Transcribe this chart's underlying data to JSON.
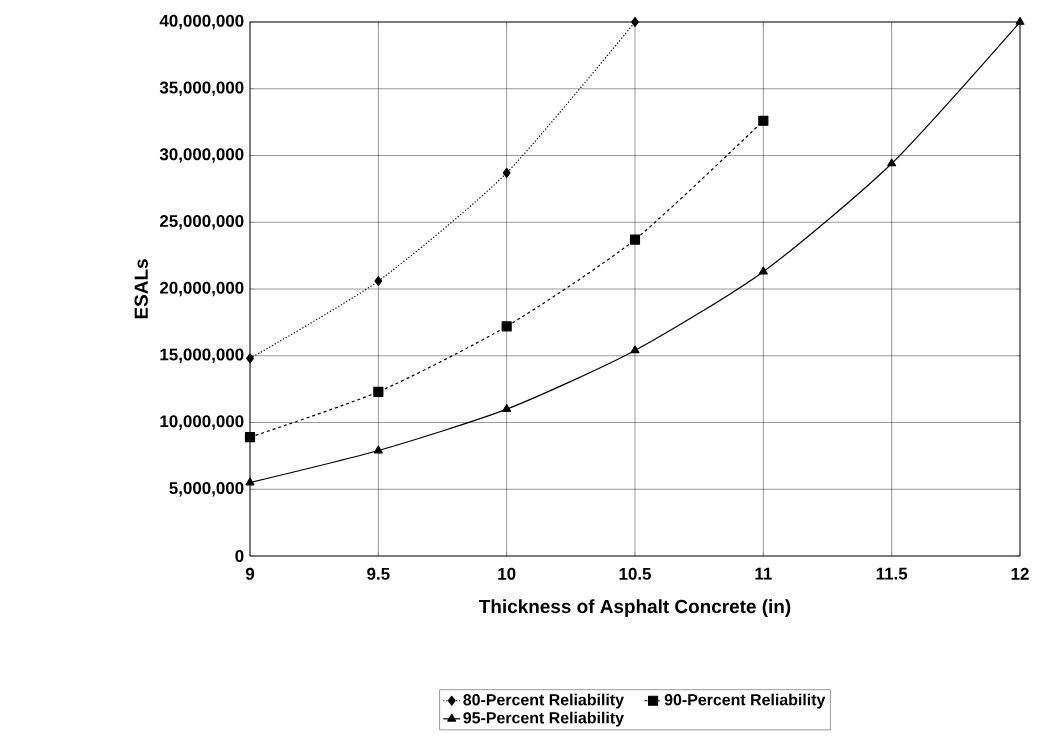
{
  "chart_data": {
    "type": "line",
    "xlabel": "Thickness of Asphalt Concrete (in)",
    "ylabel": "ESALs",
    "series": [
      {
        "name": "80-Percent Reliability",
        "color": "#000000",
        "marker": "diamond",
        "line_style": "dotted",
        "x": [
          9,
          9.5,
          10,
          10.5
        ],
        "values": [
          14800000,
          20600000,
          28700000,
          40000000
        ]
      },
      {
        "name": "90-Percent Reliability",
        "color": "#000000",
        "marker": "square",
        "line_style": "dashed",
        "x": [
          9,
          9.5,
          10,
          10.5,
          11
        ],
        "values": [
          8900000,
          12300000,
          17200000,
          23700000,
          32600000
        ]
      },
      {
        "name": "95-Percent Reliability",
        "color": "#000000",
        "marker": "triangle",
        "line_style": "solid",
        "x": [
          9,
          9.5,
          10,
          10.5,
          11,
          11.5,
          12
        ],
        "values": [
          5500000,
          7900000,
          11000000,
          15400000,
          21300000,
          29400000,
          40000000
        ]
      }
    ],
    "xlim": [
      9,
      12
    ],
    "xticks": [
      9,
      9.5,
      10,
      10.5,
      11,
      11.5,
      12
    ],
    "ylim": [
      0,
      40000000
    ],
    "yticks": [
      0,
      {
        "value": 5000000,
        "label": "5,000,000"
      },
      {
        "value": 10000000,
        "label": "10,000,000"
      },
      {
        "value": 15000000,
        "label": "15,000,000"
      },
      {
        "value": 20000000,
        "label": "20,000,000"
      },
      {
        "value": 25000000,
        "label": "25,000,000"
      },
      {
        "value": 30000000,
        "label": "30,000,000"
      },
      {
        "value": 35000000,
        "label": "35,000,000"
      },
      {
        "value": 40000000,
        "label": "40,000,000"
      }
    ],
    "grid": true,
    "legend": "bottom"
  }
}
